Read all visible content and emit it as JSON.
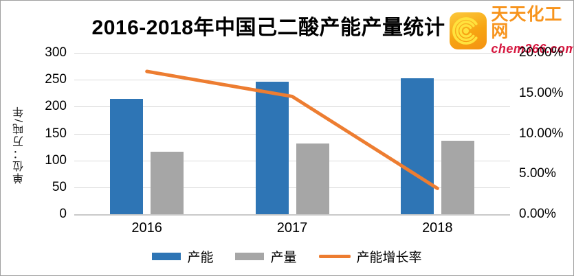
{
  "header": {
    "title": "2016-2018年中国己二酸产能产量统计",
    "logo": {
      "name": "天天化工网",
      "domain": "chem366.com",
      "icon": "concentric-arcs-icon",
      "box_color": "#F7A412",
      "arc_color": "#FFE23D",
      "name_color": "#F7941D",
      "domain_color": "#D6173F"
    }
  },
  "chart_data": {
    "type": "bar",
    "subtype": "combo-bar-line",
    "title": "2016-2018年中国己二酸产能产量统计",
    "categories": [
      "2016",
      "2017",
      "2018"
    ],
    "series": [
      {
        "name": "产能",
        "type": "bar",
        "axis": "left",
        "color": "#2E75B5",
        "values": [
          215,
          246,
          253
        ]
      },
      {
        "name": "产量",
        "type": "bar",
        "axis": "left",
        "color": "#A6A6A6",
        "values": [
          116,
          131,
          137
        ]
      },
      {
        "name": "产能增长率",
        "type": "line",
        "axis": "right",
        "color": "#ED7D31",
        "values": [
          17.7,
          14.6,
          3.2
        ]
      }
    ],
    "left_axis": {
      "title": "单位：万吨/年",
      "min": 0,
      "max": 300,
      "step": 50,
      "ticks": [
        "300",
        "250",
        "200",
        "150",
        "100",
        "50",
        "0"
      ]
    },
    "right_axis": {
      "min": 0,
      "max": 20,
      "step": 5,
      "ticks": [
        "20.00%",
        "15.00%",
        "10.00%",
        "5.00%",
        "0.00%"
      ]
    },
    "grid": true,
    "gridline_color": "#D9D9D9",
    "legend_position": "bottom",
    "legend": [
      "产能",
      "产量",
      "产能增长率"
    ]
  }
}
